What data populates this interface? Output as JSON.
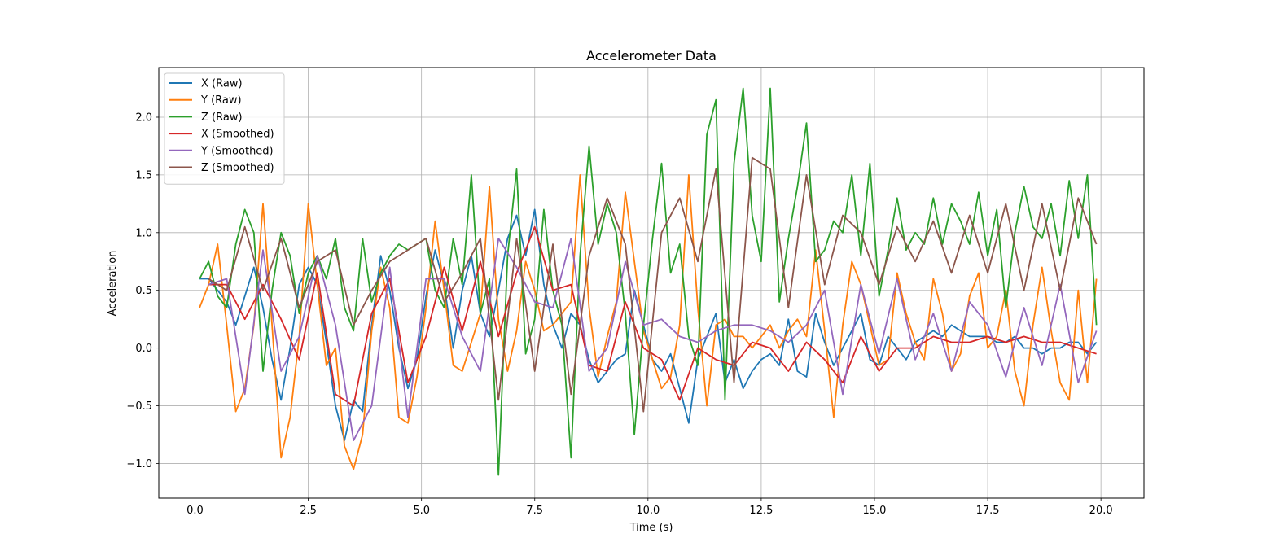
{
  "chart_data": {
    "type": "line",
    "title": "Accelerometer Data",
    "xlabel": "Time (s)",
    "ylabel": "Acceleration",
    "xlim": [
      -0.8,
      20.95
    ],
    "ylim": [
      -1.3,
      2.43
    ],
    "xticks": [
      0.0,
      2.5,
      5.0,
      7.5,
      10.0,
      12.5,
      15.0,
      17.5,
      20.0
    ],
    "xtick_labels": [
      "0.0",
      "2.5",
      "5.0",
      "7.5",
      "10.0",
      "12.5",
      "15.0",
      "17.5",
      "20.0"
    ],
    "yticks": [
      -1.0,
      -0.5,
      0.0,
      0.5,
      1.0,
      1.5,
      2.0
    ],
    "ytick_labels": [
      "−1.0",
      "−0.5",
      "0.0",
      "0.5",
      "1.0",
      "1.5",
      "2.0"
    ],
    "grid": true,
    "legend_position": "top-left",
    "series": [
      {
        "name": "X (Raw)",
        "color": "#1f77b4",
        "x": [
          0.1,
          0.3,
          0.5,
          0.7,
          0.9,
          1.1,
          1.3,
          1.5,
          1.7,
          1.9,
          2.1,
          2.3,
          2.5,
          2.7,
          2.9,
          3.1,
          3.3,
          3.5,
          3.7,
          3.9,
          4.1,
          4.3,
          4.5,
          4.7,
          4.9,
          5.1,
          5.3,
          5.5,
          5.7,
          5.9,
          6.1,
          6.3,
          6.5,
          6.7,
          6.9,
          7.1,
          7.3,
          7.5,
          7.7,
          7.9,
          8.1,
          8.3,
          8.5,
          8.7,
          8.9,
          9.1,
          9.3,
          9.5,
          9.7,
          9.9,
          10.1,
          10.3,
          10.5,
          10.7,
          10.9,
          11.1,
          11.3,
          11.5,
          11.7,
          11.9,
          12.1,
          12.3,
          12.5,
          12.7,
          12.9,
          13.1,
          13.3,
          13.5,
          13.7,
          13.9,
          14.1,
          14.3,
          14.5,
          14.7,
          14.9,
          15.1,
          15.3,
          15.5,
          15.7,
          15.9,
          16.1,
          16.3,
          16.5,
          16.7,
          16.9,
          17.1,
          17.3,
          17.5,
          17.7,
          17.9,
          18.1,
          18.3,
          18.5,
          18.7,
          18.9,
          19.1,
          19.3,
          19.5,
          19.7,
          19.9
        ],
        "y": [
          0.6,
          0.6,
          0.5,
          0.4,
          0.2,
          0.45,
          0.7,
          0.35,
          -0.1,
          -0.45,
          0.0,
          0.55,
          0.7,
          0.55,
          0.05,
          -0.5,
          -0.8,
          -0.45,
          -0.55,
          0.2,
          0.8,
          0.5,
          0.0,
          -0.35,
          -0.1,
          0.45,
          0.85,
          0.55,
          0.0,
          0.5,
          0.8,
          0.3,
          0.1,
          0.5,
          0.95,
          1.15,
          0.8,
          1.2,
          0.55,
          0.2,
          0.0,
          0.3,
          0.2,
          -0.1,
          -0.3,
          -0.2,
          -0.1,
          -0.05,
          0.5,
          0.2,
          -0.1,
          -0.2,
          -0.05,
          -0.35,
          -0.65,
          -0.1,
          0.1,
          0.3,
          -0.3,
          -0.1,
          -0.35,
          -0.2,
          -0.1,
          -0.05,
          -0.15,
          0.25,
          -0.2,
          -0.25,
          0.3,
          0.05,
          -0.15,
          0.0,
          0.15,
          0.3,
          -0.1,
          -0.15,
          0.1,
          0.0,
          -0.1,
          0.05,
          0.1,
          0.15,
          0.1,
          0.2,
          0.15,
          0.1,
          0.1,
          0.1,
          0.05,
          0.05,
          0.1,
          0.0,
          0.0,
          -0.05,
          0.0,
          0.0,
          0.05,
          0.05,
          -0.05,
          0.05
        ]
      },
      {
        "name": "Y (Raw)",
        "color": "#ff7f0e",
        "x": [
          0.1,
          0.3,
          0.5,
          0.7,
          0.9,
          1.1,
          1.3,
          1.5,
          1.7,
          1.9,
          2.1,
          2.3,
          2.5,
          2.7,
          2.9,
          3.1,
          3.3,
          3.5,
          3.7,
          3.9,
          4.1,
          4.3,
          4.5,
          4.7,
          4.9,
          5.1,
          5.3,
          5.5,
          5.7,
          5.9,
          6.1,
          6.3,
          6.5,
          6.7,
          6.9,
          7.1,
          7.3,
          7.5,
          7.7,
          7.9,
          8.1,
          8.3,
          8.5,
          8.7,
          8.9,
          9.1,
          9.3,
          9.5,
          9.7,
          9.9,
          10.1,
          10.3,
          10.5,
          10.7,
          10.9,
          11.1,
          11.3,
          11.5,
          11.7,
          11.9,
          12.1,
          12.3,
          12.5,
          12.7,
          12.9,
          13.1,
          13.3,
          13.5,
          13.7,
          13.9,
          14.1,
          14.3,
          14.5,
          14.7,
          14.9,
          15.1,
          15.3,
          15.5,
          15.7,
          15.9,
          16.1,
          16.3,
          16.5,
          16.7,
          16.9,
          17.1,
          17.3,
          17.5,
          17.7,
          17.9,
          18.1,
          18.3,
          18.5,
          18.7,
          18.9,
          19.1,
          19.3,
          19.5,
          19.7,
          19.9
        ],
        "y": [
          0.35,
          0.55,
          0.9,
          0.2,
          -0.55,
          -0.35,
          0.2,
          1.25,
          0.2,
          -0.95,
          -0.6,
          0.1,
          1.25,
          0.55,
          -0.15,
          0.0,
          -0.85,
          -1.05,
          -0.75,
          0.15,
          0.7,
          0.35,
          -0.6,
          -0.65,
          -0.25,
          0.35,
          1.1,
          0.5,
          -0.15,
          -0.2,
          0.05,
          0.3,
          1.4,
          0.25,
          -0.2,
          0.15,
          0.75,
          0.5,
          0.15,
          0.2,
          0.3,
          0.4,
          1.5,
          0.35,
          -0.25,
          0.1,
          0.4,
          1.35,
          0.75,
          0.15,
          -0.1,
          -0.35,
          -0.25,
          0.2,
          1.5,
          0.35,
          -0.5,
          0.2,
          0.25,
          0.1,
          0.1,
          0.0,
          0.1,
          0.2,
          0.0,
          0.15,
          0.25,
          0.1,
          0.85,
          0.15,
          -0.6,
          0.2,
          0.75,
          0.55,
          0.2,
          -0.15,
          -0.1,
          0.65,
          0.3,
          0.05,
          -0.1,
          0.6,
          0.3,
          -0.2,
          -0.05,
          0.45,
          0.65,
          0.0,
          0.1,
          0.5,
          -0.2,
          -0.5,
          0.2,
          0.7,
          0.15,
          -0.3,
          -0.45,
          0.5,
          -0.3,
          0.6
        ]
      },
      {
        "name": "Z (Raw)",
        "color": "#2ca02c",
        "x": [
          0.1,
          0.3,
          0.5,
          0.7,
          0.9,
          1.1,
          1.3,
          1.5,
          1.7,
          1.9,
          2.1,
          2.3,
          2.5,
          2.7,
          2.9,
          3.1,
          3.3,
          3.5,
          3.7,
          3.9,
          4.1,
          4.3,
          4.5,
          4.7,
          4.9,
          5.1,
          5.3,
          5.5,
          5.7,
          5.9,
          6.1,
          6.3,
          6.5,
          6.7,
          6.9,
          7.1,
          7.3,
          7.5,
          7.7,
          7.9,
          8.1,
          8.3,
          8.5,
          8.7,
          8.9,
          9.1,
          9.3,
          9.5,
          9.7,
          9.9,
          10.1,
          10.3,
          10.5,
          10.7,
          10.9,
          11.1,
          11.3,
          11.5,
          11.7,
          11.9,
          12.1,
          12.3,
          12.5,
          12.7,
          12.9,
          13.1,
          13.3,
          13.5,
          13.7,
          13.9,
          14.1,
          14.3,
          14.5,
          14.7,
          14.9,
          15.1,
          15.3,
          15.5,
          15.7,
          15.9,
          16.1,
          16.3,
          16.5,
          16.7,
          16.9,
          17.1,
          17.3,
          17.5,
          17.7,
          17.9,
          18.1,
          18.3,
          18.5,
          18.7,
          18.9,
          19.1,
          19.3,
          19.5,
          19.7,
          19.9
        ],
        "y": [
          0.6,
          0.75,
          0.45,
          0.35,
          0.9,
          1.2,
          1.0,
          -0.2,
          0.5,
          1.0,
          0.8,
          0.3,
          0.65,
          0.8,
          0.6,
          0.95,
          0.35,
          0.15,
          0.95,
          0.4,
          0.65,
          0.8,
          0.9,
          0.85,
          0.9,
          0.95,
          0.5,
          0.35,
          0.95,
          0.55,
          1.5,
          0.3,
          0.6,
          -1.1,
          0.8,
          1.55,
          -0.05,
          0.25,
          1.2,
          0.5,
          0.2,
          -0.95,
          0.8,
          1.75,
          0.9,
          1.25,
          1.0,
          0.3,
          -0.75,
          0.2,
          0.95,
          1.6,
          0.65,
          0.9,
          0.1,
          -0.15,
          1.85,
          2.15,
          -0.45,
          1.6,
          2.25,
          1.15,
          0.75,
          2.25,
          0.4,
          0.95,
          1.4,
          1.95,
          0.75,
          0.85,
          1.1,
          1.0,
          1.5,
          0.8,
          1.6,
          0.45,
          0.85,
          1.3,
          0.85,
          1.0,
          0.9,
          1.3,
          0.9,
          1.25,
          1.1,
          0.9,
          1.35,
          0.8,
          1.2,
          0.35,
          1.0,
          1.4,
          1.05,
          0.95,
          1.25,
          0.8,
          1.45,
          0.95,
          1.5,
          0.2
        ]
      },
      {
        "name": "X (Smoothed)",
        "color": "#d62728",
        "x": [
          0.3,
          0.7,
          1.1,
          1.5,
          1.9,
          2.3,
          2.7,
          3.1,
          3.5,
          3.9,
          4.3,
          4.7,
          5.1,
          5.5,
          5.9,
          6.3,
          6.7,
          7.1,
          7.5,
          7.9,
          8.3,
          8.7,
          9.1,
          9.5,
          9.9,
          10.3,
          10.7,
          11.1,
          11.5,
          11.9,
          12.3,
          12.7,
          13.1,
          13.5,
          13.9,
          14.3,
          14.7,
          15.1,
          15.5,
          15.9,
          16.3,
          16.7,
          17.1,
          17.5,
          17.9,
          18.3,
          18.7,
          19.1,
          19.5,
          19.9
        ],
        "y": [
          0.55,
          0.55,
          0.25,
          0.55,
          0.25,
          -0.1,
          0.65,
          -0.4,
          -0.5,
          0.3,
          0.6,
          -0.3,
          0.1,
          0.7,
          0.15,
          0.75,
          0.1,
          0.65,
          1.05,
          0.5,
          0.55,
          -0.15,
          -0.2,
          0.4,
          0.0,
          -0.1,
          -0.45,
          0.0,
          -0.1,
          -0.15,
          0.05,
          0.0,
          -0.2,
          0.05,
          -0.1,
          -0.3,
          0.1,
          -0.2,
          0.0,
          0.0,
          0.1,
          0.05,
          0.05,
          0.1,
          0.05,
          0.1,
          0.05,
          0.05,
          0.0,
          -0.05
        ]
      },
      {
        "name": "Y (Smoothed)",
        "color": "#9467bd",
        "x": [
          0.3,
          0.7,
          1.1,
          1.5,
          1.9,
          2.3,
          2.7,
          3.1,
          3.5,
          3.9,
          4.3,
          4.7,
          5.1,
          5.5,
          5.9,
          6.3,
          6.7,
          7.1,
          7.5,
          7.9,
          8.3,
          8.7,
          9.1,
          9.5,
          9.9,
          10.3,
          10.7,
          11.1,
          11.5,
          11.9,
          12.3,
          12.7,
          13.1,
          13.5,
          13.9,
          14.3,
          14.7,
          15.1,
          15.5,
          15.9,
          16.3,
          16.7,
          17.1,
          17.5,
          17.9,
          18.3,
          18.7,
          19.1,
          19.5,
          19.9
        ],
        "y": [
          0.55,
          0.6,
          -0.4,
          0.85,
          -0.2,
          0.1,
          0.8,
          0.2,
          -0.8,
          -0.5,
          0.7,
          -0.6,
          0.6,
          0.6,
          0.1,
          -0.2,
          0.95,
          0.7,
          0.4,
          0.35,
          0.95,
          -0.2,
          0.0,
          0.75,
          0.2,
          0.25,
          0.1,
          0.05,
          0.15,
          0.2,
          0.2,
          0.15,
          0.05,
          0.2,
          0.5,
          -0.4,
          0.55,
          -0.05,
          0.6,
          -0.1,
          0.3,
          -0.2,
          0.4,
          0.2,
          -0.25,
          0.35,
          -0.15,
          0.55,
          -0.3,
          0.15
        ]
      },
      {
        "name": "Z (Smoothed)",
        "color": "#8c564b",
        "x": [
          0.3,
          0.7,
          1.1,
          1.5,
          1.9,
          2.3,
          2.7,
          3.1,
          3.5,
          3.9,
          4.3,
          4.7,
          5.1,
          5.5,
          5.9,
          6.3,
          6.7,
          7.1,
          7.5,
          7.9,
          8.3,
          8.7,
          9.1,
          9.5,
          9.9,
          10.3,
          10.7,
          11.1,
          11.5,
          11.9,
          12.3,
          12.7,
          13.1,
          13.5,
          13.9,
          14.3,
          14.7,
          15.1,
          15.5,
          15.9,
          16.3,
          16.7,
          17.1,
          17.5,
          17.9,
          18.3,
          18.7,
          19.1,
          19.5,
          19.9
        ],
        "y": [
          0.6,
          0.5,
          1.05,
          0.5,
          0.95,
          0.35,
          0.75,
          0.85,
          0.2,
          0.5,
          0.75,
          0.85,
          0.95,
          0.4,
          0.65,
          0.95,
          -0.45,
          0.95,
          -0.2,
          0.9,
          -0.4,
          0.8,
          1.3,
          0.9,
          -0.55,
          1.0,
          1.3,
          0.75,
          1.55,
          -0.3,
          1.65,
          1.55,
          0.35,
          1.5,
          0.55,
          1.15,
          1.0,
          0.55,
          1.05,
          0.75,
          1.1,
          0.65,
          1.15,
          0.65,
          1.25,
          0.5,
          1.25,
          0.5,
          1.3,
          0.9
        ]
      }
    ]
  }
}
